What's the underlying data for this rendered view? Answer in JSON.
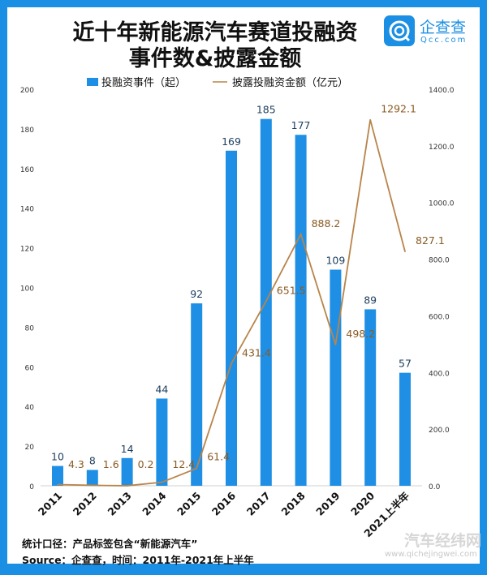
{
  "title_line1": "近十年新能源汽车赛道投融资",
  "title_line2": "事件数&披露金额",
  "logo": {
    "text": "企查查",
    "sub": "Qcc.com"
  },
  "footer": {
    "note": "统计口径：产品标签包含“新能源汽车”",
    "source": "Source：企查查，时间：2011年-2021年上半年"
  },
  "watermark": {
    "text": "汽车经纬网",
    "url": "www.qichejingwei.com"
  },
  "colors": {
    "frame": "#1b8fe3",
    "bar": "#1f8fe5",
    "line": "#b8844a"
  },
  "chart_data": {
    "type": "bar+line",
    "categories": [
      "2011",
      "2012",
      "2013",
      "2014",
      "2015",
      "2016",
      "2017",
      "2018",
      "2019",
      "2020",
      "2021上半年"
    ],
    "series": [
      {
        "name": "投融资事件（起）",
        "type": "bar",
        "axis": "left",
        "values": [
          10,
          8,
          14,
          44,
          92,
          169,
          185,
          177,
          109,
          89,
          57
        ],
        "labels": [
          "10",
          "8",
          "14",
          "44",
          "92",
          "169",
          "185",
          "177",
          "109",
          "89",
          "57"
        ]
      },
      {
        "name": "披露投融资金额（亿元）",
        "type": "line",
        "axis": "right",
        "values": [
          4.3,
          1.6,
          0.2,
          12.4,
          61.4,
          431.4,
          651.5,
          888.2,
          498.2,
          1292.1,
          827.1
        ],
        "labels": [
          "4.3",
          "1.6",
          "0.2",
          "12.4",
          "61.4",
          "431.4",
          "651.5",
          "888.2",
          "498.2",
          "1292.1",
          "827.1"
        ]
      }
    ],
    "left_axis": {
      "range": [
        0,
        200
      ],
      "ticks": [
        "0",
        "20",
        "40",
        "60",
        "80",
        "100",
        "120",
        "140",
        "160",
        "180",
        "200"
      ]
    },
    "right_axis": {
      "range": [
        0,
        1400
      ],
      "ticks": [
        "0.0",
        "200.0",
        "400.0",
        "600.0",
        "800.0",
        "1000.0",
        "1200.0",
        "1400.0"
      ]
    },
    "legend_position": "top",
    "grid": false
  }
}
